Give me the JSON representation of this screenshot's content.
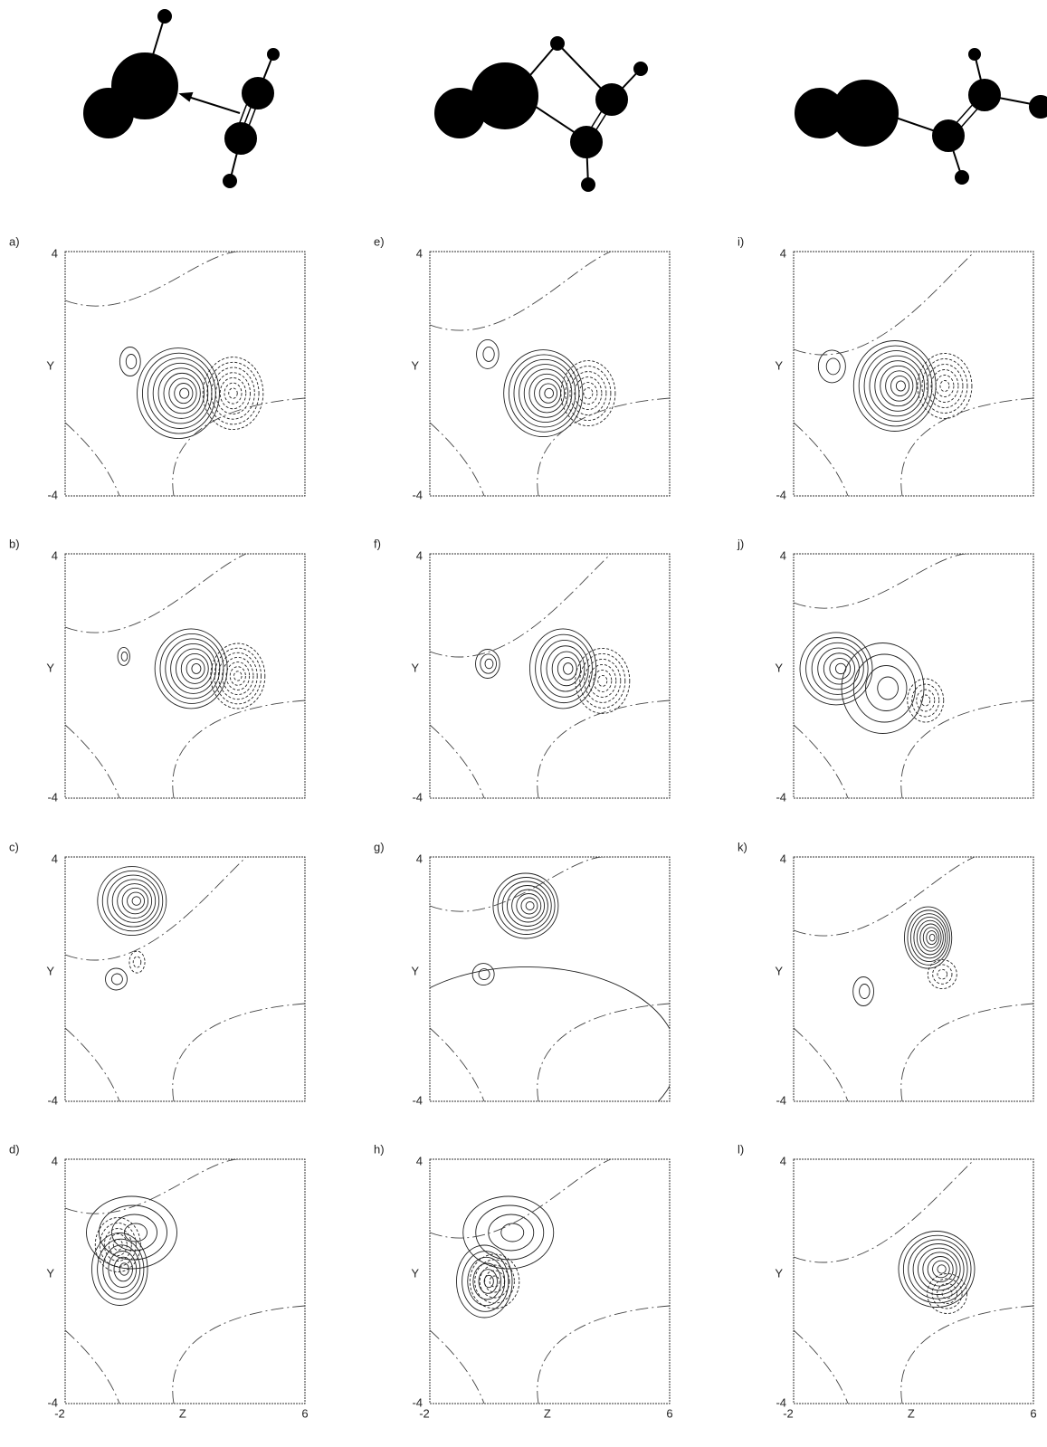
{
  "panels": [
    {
      "label": "a)",
      "y_axis": {
        "label": "Y",
        "ticks": [
          "4",
          "-4"
        ]
      }
    },
    {
      "label": "b)",
      "y_axis": {
        "label": "Y",
        "ticks": [
          "4",
          "-4"
        ]
      }
    },
    {
      "label": "c)",
      "y_axis": {
        "label": "Y",
        "ticks": [
          "4",
          "-4"
        ]
      }
    },
    {
      "label": "d)",
      "y_axis": {
        "label": "Y",
        "ticks": [
          "4",
          "-4"
        ]
      },
      "x_axis": {
        "label": "Z",
        "ticks": [
          "-2",
          "6"
        ]
      }
    },
    {
      "label": "e)",
      "y_axis": {
        "label": "Y",
        "ticks": [
          "4",
          "-4"
        ]
      }
    },
    {
      "label": "f)",
      "y_axis": {
        "label": "Y",
        "ticks": [
          "4",
          "-4"
        ]
      }
    },
    {
      "label": "g)",
      "y_axis": {
        "label": "Y",
        "ticks": [
          "4",
          "-4"
        ]
      }
    },
    {
      "label": "h)",
      "y_axis": {
        "label": "Y",
        "ticks": [
          "4",
          "-4"
        ]
      },
      "x_axis": {
        "label": "Z",
        "ticks": [
          "-2",
          "6"
        ]
      }
    },
    {
      "label": "i)",
      "y_axis": {
        "label": "Y",
        "ticks": [
          "4",
          "-4"
        ]
      }
    },
    {
      "label": "j)",
      "y_axis": {
        "label": "Y",
        "ticks": [
          "4",
          "-4"
        ]
      }
    },
    {
      "label": "k)",
      "y_axis": {
        "label": "Y",
        "ticks": [
          "4",
          "-4"
        ]
      }
    },
    {
      "label": "l)",
      "y_axis": {
        "label": "Y",
        "ticks": [
          "4",
          "-4"
        ]
      },
      "x_axis": {
        "label": "Z",
        "ticks": [
          "-2",
          "6"
        ]
      }
    }
  ]
}
